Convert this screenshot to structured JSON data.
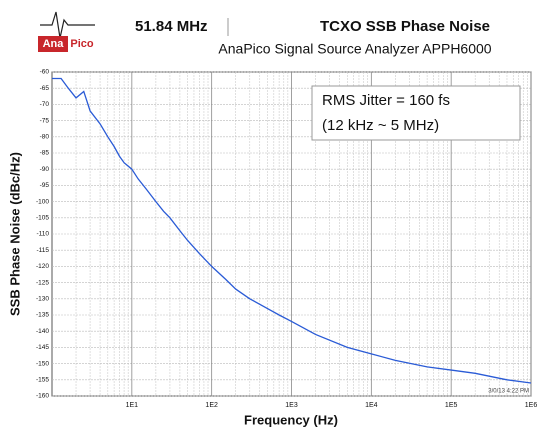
{
  "logo": {
    "line1": "Ana",
    "line2": "Pico"
  },
  "chart_data": {
    "type": "line",
    "title": "TCXO SSB Phase Noise",
    "carrier": "51.84 MHz",
    "subtitle": "AnaPico Signal Source Analyzer APPH6000",
    "xlabel": "Frequency (Hz)",
    "ylabel": "SSB Phase Noise (dBc/Hz)",
    "annotations": [
      "RMS Jitter = 160 fs",
      "(12 kHz ~ 5 MHz)"
    ],
    "timestamp": "3/0/13 4:22 PM",
    "xscale": "log",
    "grid": true,
    "xlim": [
      1,
      1000000
    ],
    "ylim": [
      -160,
      -60
    ],
    "xticks": [
      {
        "value": 10,
        "label": "1E1"
      },
      {
        "value": 100,
        "label": "1E2"
      },
      {
        "value": 1000,
        "label": "1E3"
      },
      {
        "value": 10000,
        "label": "1E4"
      },
      {
        "value": 100000,
        "label": "1E5"
      },
      {
        "value": 1000000,
        "label": "1E6"
      }
    ],
    "yticks": [
      -60,
      -65,
      -70,
      -75,
      -80,
      -85,
      -90,
      -95,
      -100,
      -105,
      -110,
      -115,
      -120,
      -125,
      -130,
      -135,
      -140,
      -145,
      -150,
      -155,
      -160
    ],
    "x": [
      1,
      1.3,
      1.6,
      2,
      2.5,
      3,
      4,
      5,
      6,
      7,
      8,
      10,
      12,
      15,
      20,
      25,
      30,
      40,
      50,
      70,
      100,
      150,
      200,
      300,
      500,
      700,
      1000,
      2000,
      5000,
      10000,
      20000,
      50000,
      100000,
      200000,
      500000,
      1000000
    ],
    "series": [
      {
        "name": "Phase Noise",
        "color": "#2a5bd6",
        "values": [
          -62,
          -62,
          -65,
          -68,
          -66,
          -72,
          -76,
          -80,
          -83,
          -86,
          -88,
          -90,
          -93,
          -96,
          -100,
          -103,
          -105,
          -109,
          -112,
          -116,
          -120,
          -124,
          -127,
          -130,
          -133,
          -135,
          -137,
          -141,
          -145,
          -147,
          -149,
          -151,
          -152,
          -153,
          -155,
          -156
        ]
      }
    ]
  }
}
